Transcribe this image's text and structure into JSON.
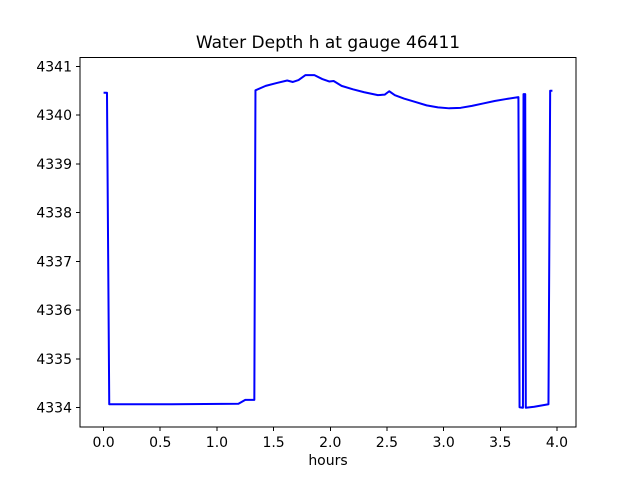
{
  "figure": {
    "background": "#ffffff",
    "text_color": "#000000"
  },
  "chart_data": {
    "type": "line",
    "title": "Water Depth h at gauge 46411",
    "xlabel": "hours",
    "ylabel": "",
    "grid": false,
    "legend": null,
    "line_color": "#0000ff",
    "line_width": 2,
    "axes_color": "#000000",
    "xlim": [
      -0.208,
      4.168
    ],
    "ylim": [
      4333.6,
      4341.18
    ],
    "xticks": [
      0.0,
      0.5,
      1.0,
      1.5,
      2.0,
      2.5,
      3.0,
      3.5,
      4.0
    ],
    "xtick_labels": [
      "0.0",
      "0.5",
      "1.0",
      "1.5",
      "2.0",
      "2.5",
      "3.0",
      "3.5",
      "4.0"
    ],
    "yticks": [
      4334,
      4335,
      4336,
      4337,
      4338,
      4339,
      4340,
      4341
    ],
    "ytick_labels": [
      "4334",
      "4335",
      "4336",
      "4337",
      "4338",
      "4339",
      "4340",
      "4341"
    ],
    "series": [
      {
        "points": [
          [
            0.0,
            4340.46
          ],
          [
            0.03,
            4340.46
          ],
          [
            0.05,
            4334.07
          ],
          [
            0.6,
            4334.07
          ],
          [
            1.19,
            4334.08
          ],
          [
            1.25,
            4334.16
          ],
          [
            1.33,
            4334.16
          ],
          [
            1.34,
            4340.51
          ],
          [
            1.43,
            4340.6
          ],
          [
            1.53,
            4340.66
          ],
          [
            1.62,
            4340.71
          ],
          [
            1.67,
            4340.68
          ],
          [
            1.72,
            4340.72
          ],
          [
            1.78,
            4340.82
          ],
          [
            1.86,
            4340.82
          ],
          [
            1.93,
            4340.74
          ],
          [
            1.99,
            4340.69
          ],
          [
            2.03,
            4340.7
          ],
          [
            2.1,
            4340.6
          ],
          [
            2.2,
            4340.53
          ],
          [
            2.3,
            4340.47
          ],
          [
            2.42,
            4340.41
          ],
          [
            2.48,
            4340.42
          ],
          [
            2.52,
            4340.49
          ],
          [
            2.57,
            4340.41
          ],
          [
            2.65,
            4340.34
          ],
          [
            2.75,
            4340.27
          ],
          [
            2.85,
            4340.2
          ],
          [
            2.95,
            4340.16
          ],
          [
            3.05,
            4340.14
          ],
          [
            3.15,
            4340.15
          ],
          [
            3.25,
            4340.19
          ],
          [
            3.35,
            4340.24
          ],
          [
            3.45,
            4340.29
          ],
          [
            3.55,
            4340.33
          ],
          [
            3.66,
            4340.37
          ],
          [
            3.67,
            4334.01
          ],
          [
            3.7,
            4334.0
          ],
          [
            3.705,
            4340.43
          ],
          [
            3.72,
            4340.43
          ],
          [
            3.725,
            4334.0
          ],
          [
            3.8,
            4334.02
          ],
          [
            3.925,
            4334.07
          ],
          [
            3.94,
            4340.5
          ],
          [
            3.96,
            4340.5
          ]
        ]
      }
    ]
  }
}
